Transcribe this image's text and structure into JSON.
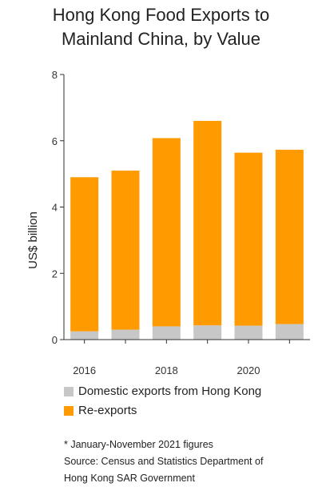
{
  "chart_data": {
    "type": "bar",
    "stacked": true,
    "title_lines": [
      "Hong Kong Food Exports to",
      "Mainland China, by Value"
    ],
    "ylabel": "US$ billion",
    "ylim": [
      0,
      8
    ],
    "yticks": [
      0,
      2,
      4,
      6,
      8
    ],
    "categories": [
      "2016",
      "2017",
      "2018",
      "2019",
      "2020",
      "2021"
    ],
    "xtick_labels": [
      "2016",
      "",
      "2018",
      "",
      "2020",
      ""
    ],
    "series": [
      {
        "name": "Domestic exports from Hong Kong",
        "color": "#c7c7c7",
        "values": [
          0.25,
          0.3,
          0.4,
          0.43,
          0.42,
          0.47
        ]
      },
      {
        "name": "Re-exports",
        "color": "#ff9a00",
        "values": [
          4.65,
          4.8,
          5.68,
          6.17,
          5.22,
          5.26
        ]
      }
    ],
    "grid": false,
    "legend_position": "bottom"
  },
  "notes": {
    "footnote": "* January-November 2021 figures",
    "source_line1": "Source: Census and Statistics Department of",
    "source_line2": "Hong Kong SAR Government"
  }
}
